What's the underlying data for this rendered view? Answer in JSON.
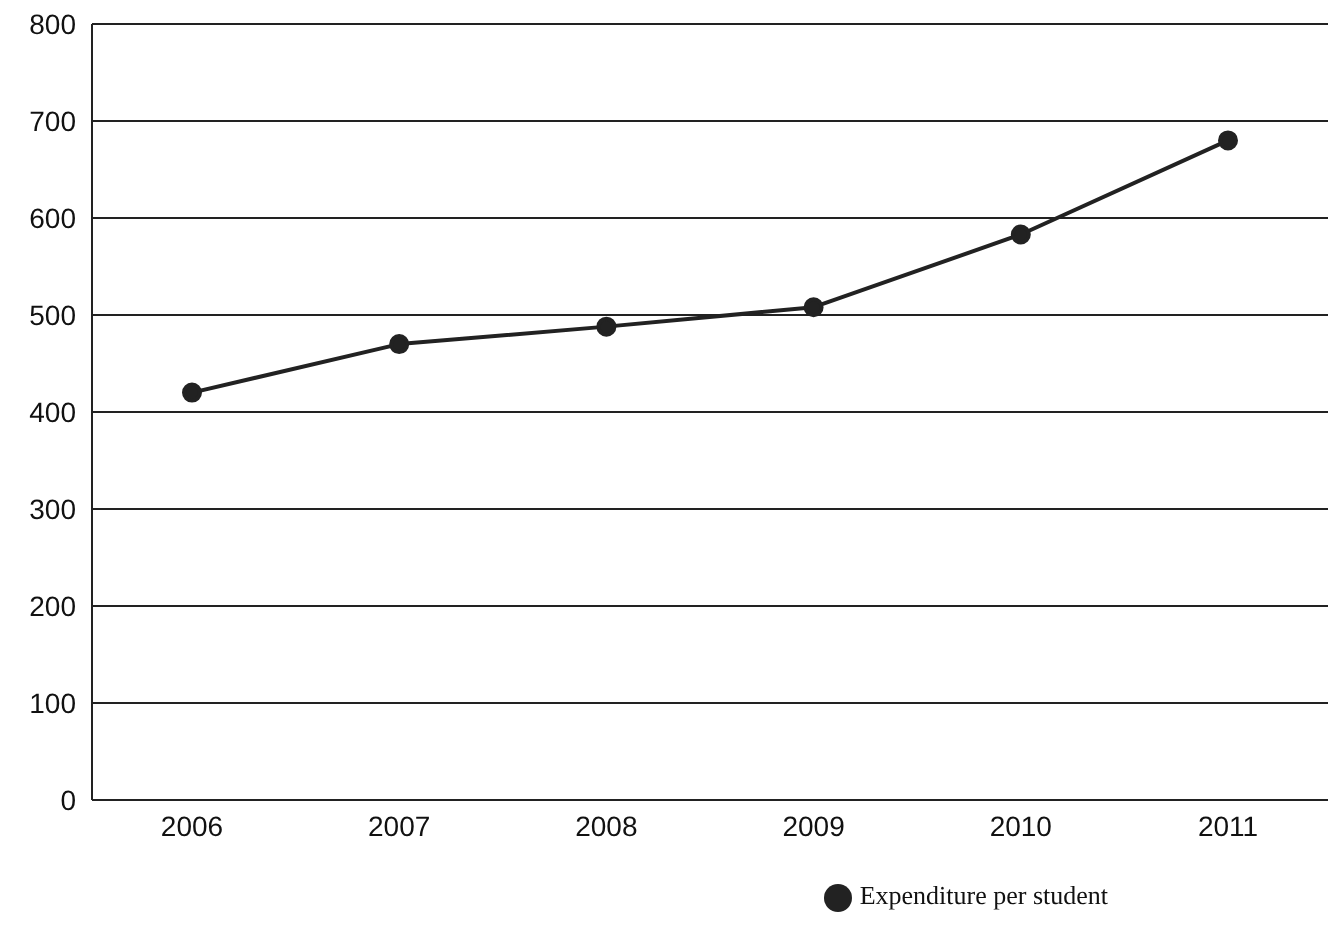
{
  "chart_data": {
    "type": "line",
    "categories": [
      "2006",
      "2007",
      "2008",
      "2009",
      "2010",
      "2011"
    ],
    "series": [
      {
        "name": "Expenditure per student",
        "color": "#222222",
        "values": [
          420,
          470,
          488,
          508,
          583,
          680
        ]
      }
    ],
    "ylim": [
      0,
      800
    ],
    "yticks": [
      0,
      100,
      200,
      300,
      400,
      500,
      600,
      700,
      800
    ],
    "grid": "y",
    "legend": "bottom right",
    "marker": "circle",
    "line_style": "solid"
  }
}
